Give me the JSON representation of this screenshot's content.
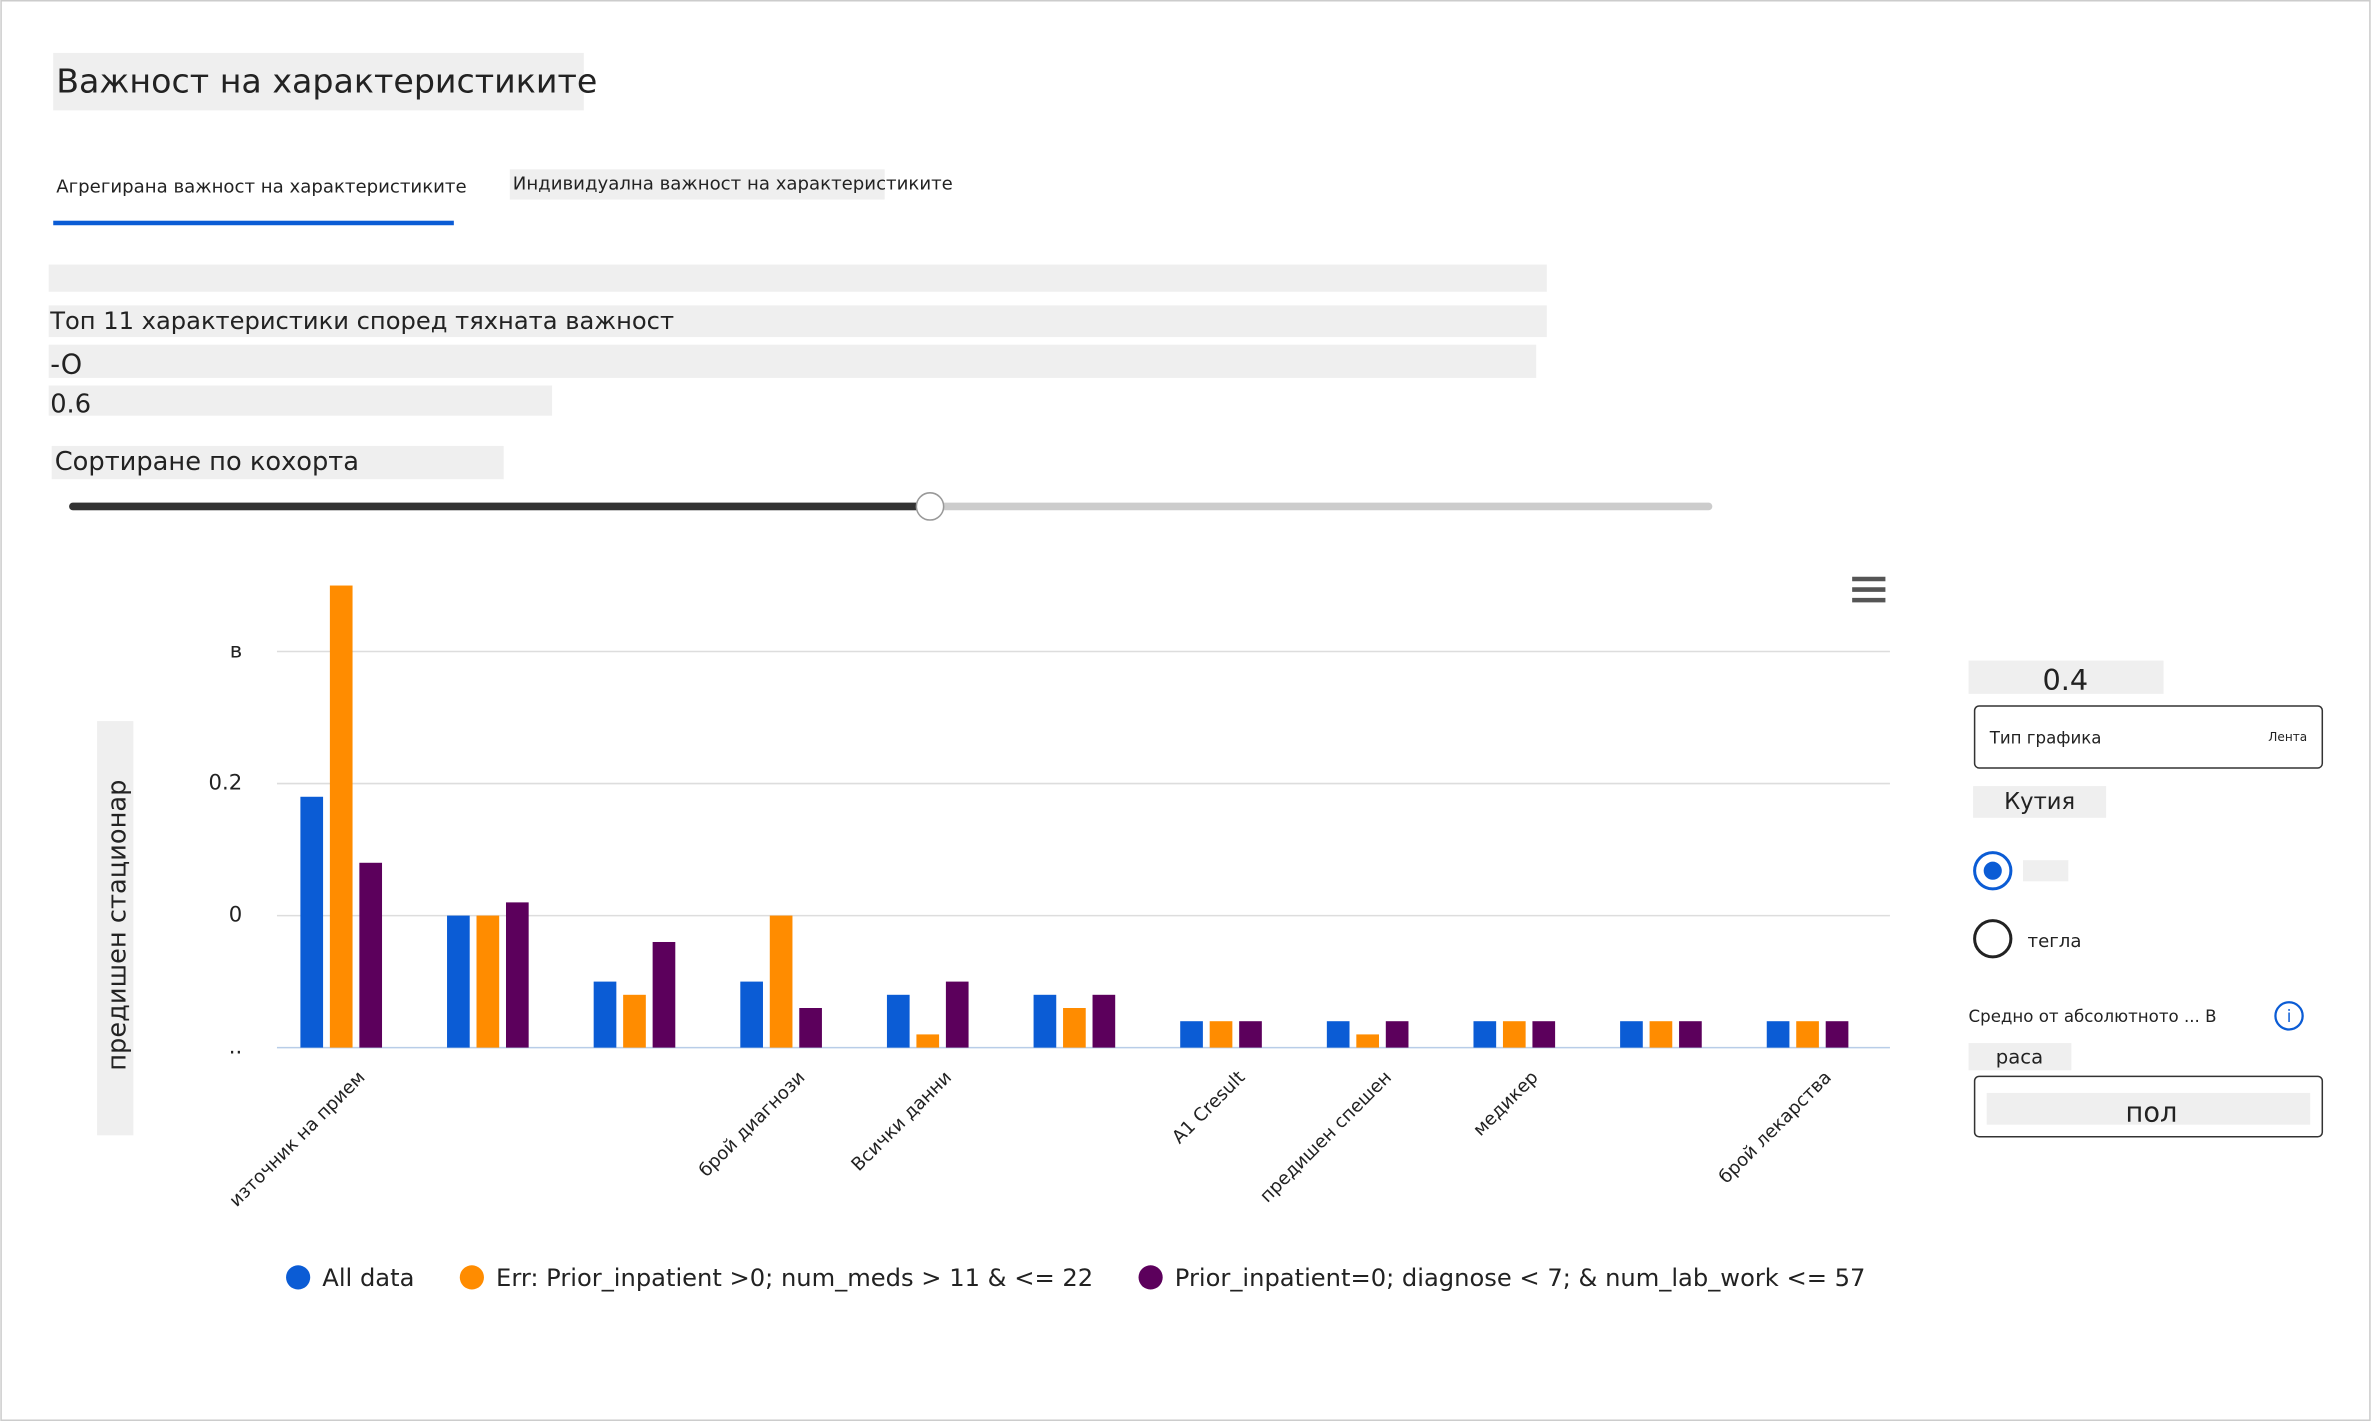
{
  "header": {
    "title": "Важност на характеристиките"
  },
  "tabs": [
    "Агрегирана важност на характеристиките",
    "Индивидуална важност на характеристиките"
  ],
  "controls": {
    "top_value": "-O",
    "slider_value": "0.6",
    "sort_label": "Сортиране по кохорта"
  },
  "panel": {
    "value": "0.4",
    "chart_type_label": "Тип графика",
    "chart_type_value": "Лента",
    "box_label": "Кутия",
    "radio_2": "тегла",
    "measure_label": "Средно от абсолютното ... В",
    "group_label": "раса",
    "group_value": "пол"
  },
  "chart_data": {
    "type": "bar",
    "title": "Топ 11 характеристики според тяхната важност",
    "y_label": "предишен стационар",
    "categories": [
      "източник на прием",
      null,
      null,
      "брой диагнози",
      "Всички данни",
      null,
      "A1 Cresult",
      "предишен спешен",
      "медикер",
      null,
      "брой лекарства"
    ],
    "series": [
      {
        "name": "All data",
        "color": "#0b5cd5",
        "values": [
          0.19,
          0.1,
          0.05,
          0.05,
          0.04,
          0.04,
          0.02,
          0.02,
          0.02,
          0.02,
          0.02
        ]
      },
      {
        "name": "Err: Prior_inpatient >0; num_meds > 11 & <= 22",
        "color": "#ff8c00",
        "values": [
          0.35,
          0.1,
          0.04,
          0.1,
          0.01,
          0.03,
          0.02,
          0.01,
          0.02,
          0.02,
          0.02
        ]
      },
      {
        "name": "Prior_inpatient=0; diagnose < 7; & num_lab_work <= 57",
        "color": "#5c005c",
        "values": [
          0.14,
          0.11,
          0.08,
          0.03,
          0.05,
          0.04,
          0.02,
          0.02,
          0.02,
          0.02,
          0.02
        ]
      }
    ],
    "ylim": [
      0,
      0.35
    ],
    "yticks": [
      {
        "value": 0,
        "label": ".."
      },
      {
        "value": 0.1,
        "label": "0"
      },
      0.2,
      {
        "value": 0.3,
        "label": "в"
      }
    ],
    "grid": true
  }
}
